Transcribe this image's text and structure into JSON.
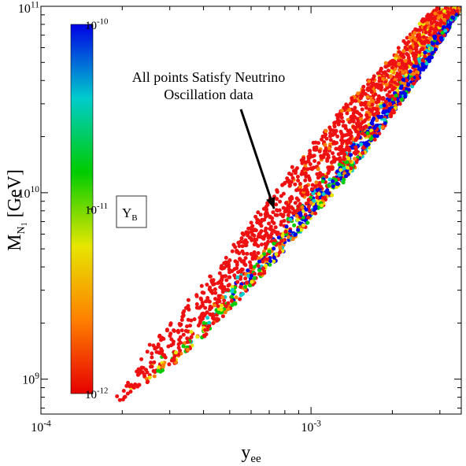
{
  "chart_data": {
    "type": "scatter",
    "xlabel": "y",
    "xlabel_sub": "ee",
    "ylabel": "M",
    "ylabel_sub": "N",
    "ylabel_subsub": "1",
    "ylabel_unit": "[GeV]",
    "x_scale": "log",
    "y_scale": "log",
    "xlim": [
      0.0001,
      0.0036
    ],
    "ylim": [
      650000000,
      100000000000
    ],
    "x_ticks": [
      {
        "value": 0.0001,
        "base": "10",
        "exp": "-4"
      },
      {
        "value": 0.001,
        "base": "10",
        "exp": "-3"
      }
    ],
    "y_ticks": [
      {
        "value": 1000000000,
        "base": "10",
        "exp": "9"
      },
      {
        "value": 10000000000,
        "base": "10",
        "exp": "10"
      },
      {
        "value": 100000000000,
        "base": "10",
        "exp": "11"
      }
    ],
    "colorbar": {
      "label_main": "Y",
      "label_sub": "B",
      "scale": "log",
      "range": [
        1e-12,
        1e-10
      ],
      "ticks": [
        {
          "value": 1e-10,
          "base": "10",
          "exp": "-10"
        },
        {
          "value": 1e-11,
          "base": "10",
          "exp": "-11"
        },
        {
          "value": 1e-12,
          "base": "10",
          "exp": "-12"
        }
      ],
      "colors": [
        "#e60000",
        "#ff8000",
        "#e6e600",
        "#00cc00",
        "#00cccc",
        "#0000e6"
      ]
    },
    "annotation": {
      "lines": [
        "All points Satisfy Neutrino",
        "Oscillation data"
      ],
      "arrow_from": [
        0.00055,
        28000000000
      ],
      "arrow_to": [
        0.00073,
        8200000000
      ]
    },
    "band": {
      "lower_edge": [
        [
          0.000175,
          680000000
        ],
        [
          0.00035,
          1400000000
        ],
        [
          0.0007,
          4000000000
        ],
        [
          0.0014,
          13000000000
        ],
        [
          0.0025,
          42000000000
        ],
        [
          0.0036,
          100000000000
        ]
      ],
      "upper_edge": [
        [
          0.000175,
          680000000
        ],
        [
          0.00025,
          1500000000
        ],
        [
          0.00045,
          4000000000
        ],
        [
          0.0008,
          12000000000
        ],
        [
          0.0015,
          35000000000
        ],
        [
          0.0025,
          80000000000
        ],
        [
          0.0029,
          100000000000
        ]
      ],
      "point_count": 2600,
      "dominant_color": "#ee1111"
    }
  }
}
